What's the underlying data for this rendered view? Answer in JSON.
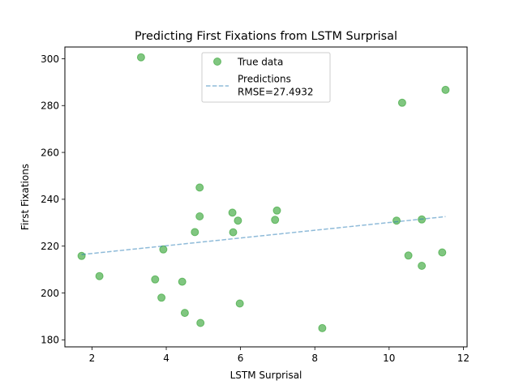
{
  "chart_data": {
    "type": "scatter",
    "title": "Predicting First Fixations from LSTM Surprisal",
    "xlabel": "LSTM Surprisal",
    "ylabel": "First Fixations",
    "xlim": [
      1.27,
      12.1
    ],
    "ylim": [
      177,
      305
    ],
    "xticks": [
      2,
      4,
      6,
      8,
      10,
      12
    ],
    "yticks": [
      180,
      200,
      220,
      240,
      260,
      280,
      300
    ],
    "grid": false,
    "legend_position": "top-center",
    "series": [
      {
        "name": "True data",
        "kind": "scatter",
        "color": "#2ca02c",
        "points": [
          [
            1.72,
            215.8
          ],
          [
            2.2,
            207.2
          ],
          [
            3.32,
            300.6
          ],
          [
            3.7,
            205.8
          ],
          [
            3.87,
            198.0
          ],
          [
            3.92,
            218.6
          ],
          [
            4.43,
            204.8
          ],
          [
            4.5,
            191.5
          ],
          [
            4.77,
            226.0
          ],
          [
            4.9,
            245.0
          ],
          [
            4.9,
            232.7
          ],
          [
            4.92,
            187.2
          ],
          [
            5.78,
            234.3
          ],
          [
            5.8,
            225.9
          ],
          [
            5.93,
            230.9
          ],
          [
            5.98,
            195.5
          ],
          [
            6.93,
            231.2
          ],
          [
            6.98,
            235.2
          ],
          [
            8.2,
            185.0
          ],
          [
            10.2,
            230.9
          ],
          [
            10.35,
            281.2
          ],
          [
            10.52,
            216.0
          ],
          [
            10.88,
            231.4
          ],
          [
            10.88,
            211.6
          ],
          [
            11.43,
            217.3
          ],
          [
            11.52,
            286.7
          ]
        ]
      },
      {
        "name": "Predictions\nRMSE=27.4932",
        "kind": "line",
        "color": "#1f77b4",
        "dash": true,
        "points": [
          [
            1.72,
            216.4
          ],
          [
            11.52,
            232.6
          ]
        ]
      }
    ],
    "legend": {
      "entries": [
        "True data",
        "Predictions",
        "RMSE=27.4932"
      ]
    }
  }
}
